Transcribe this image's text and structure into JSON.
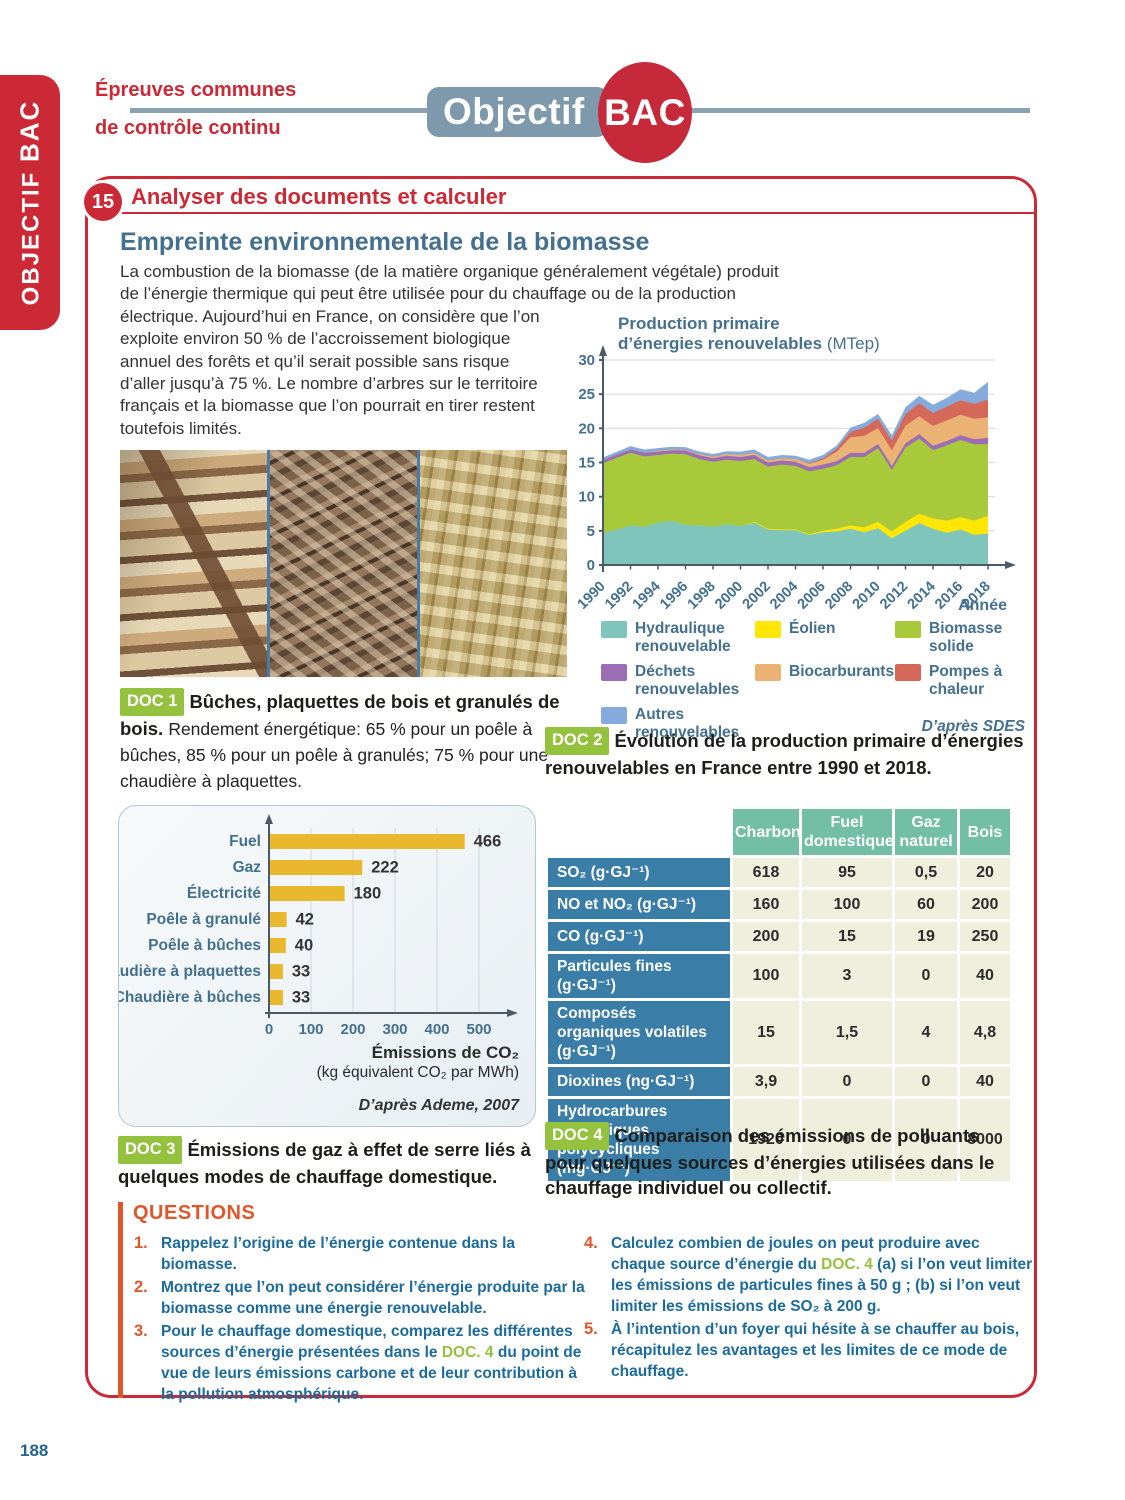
{
  "page": {
    "number": "188"
  },
  "header": {
    "sidebar_label_1": "OBJECTIF",
    "sidebar_label_2": "BAC",
    "eyebrow_line1": "Épreuves communes",
    "eyebrow_line2": "de contrôle continu",
    "logo_text": "Objectif",
    "logo_badge": "BAC"
  },
  "exercise": {
    "number": "15",
    "heading": "Analyser des documents et calculer",
    "title": "Empreinte environnementale de la biomasse",
    "intro": "La combustion de la biomasse (de la matière organique généralement végétale) produit de l’énergie thermique qui peut être utilisée pour du chauffage ou de la production électrique. Aujourd’hui en France, on considère que l’on exploite environ 50 % de l’accroissement biologique annuel des forêts et qu’il serait possible sans risque d’aller jusqu’à 75 %. Le nombre d’arbres sur le territoire français et la biomasse que l’on pourrait en tirer restent toutefois limités."
  },
  "doc1": {
    "badge": "DOC 1",
    "title": "Bûches, plaquettes de bois et granulés de bois.",
    "text": "Rendement énergétique: 65 % pour un poêle à bûches, 85 % pour un poêle à granulés; 75 % pour une chaudière à plaquettes."
  },
  "doc2": {
    "badge": "DOC 2",
    "caption": "Évolution de la production primaire d’énergies renouvelables en France entre 1990 et 2018.",
    "legend": [
      {
        "label": "Hydraulique renouvelable",
        "color": "#7fc5bb"
      },
      {
        "label": "Éolien",
        "color": "#ffe605"
      },
      {
        "label": "Biomasse solide",
        "color": "#a8c93a"
      },
      {
        "label": "Déchets renouvelables",
        "color": "#9b6db4"
      },
      {
        "label": "Biocarburants",
        "color": "#eab273"
      },
      {
        "label": "Pompes à chaleur",
        "color": "#d4695a"
      },
      {
        "label": "Autres renouvelables",
        "color": "#85abdc"
      },
      {
        "label": "",
        "color": null
      },
      {
        "label": "D’après SDES",
        "color": null,
        "source": true
      }
    ]
  },
  "doc3": {
    "badge": "DOC 3",
    "caption": "Émissions de gaz à effet de serre liés à quelques modes de chauffage domestique."
  },
  "doc4": {
    "badge": "DOC 4",
    "caption": "Comparaison des émissions de polluants pour quelques sources d’énergies utilisées dans le chauffage individuel ou collectif.",
    "table": {
      "columns": [
        "Charbon",
        "Fuel domestique",
        "Gaz naturel",
        "Bois"
      ],
      "rows": [
        {
          "label": "SO₂ (g·GJ⁻¹)",
          "values": [
            "618",
            "95",
            "0,5",
            "20"
          ]
        },
        {
          "label": "NO et NO₂ (g·GJ⁻¹)",
          "values": [
            "160",
            "100",
            "60",
            "200"
          ]
        },
        {
          "label": "CO  (g·GJ⁻¹)",
          "values": [
            "200",
            "15",
            "19",
            "250"
          ]
        },
        {
          "label": "Particules fines (g·GJ⁻¹)",
          "values": [
            "100",
            "3",
            "0",
            "40"
          ]
        },
        {
          "label": "Composés organiques volatiles (g·GJ⁻¹)",
          "values": [
            "15",
            "1,5",
            "4",
            "4,8"
          ]
        },
        {
          "label": "Dioxines (ng·GJ⁻¹)",
          "values": [
            "3,9",
            "0",
            "0",
            "40"
          ]
        },
        {
          "label": "Hydrocarbures aromatiques polycycliques (mg·GJ⁻¹)",
          "values": [
            "1920",
            "0",
            "0",
            "8000"
          ]
        }
      ]
    }
  },
  "questions": {
    "heading": "QUESTIONS",
    "col1": [
      {
        "num": "1.",
        "parts": [
          {
            "t": "Rappelez l’origine de l’énergie contenue dans la biomasse."
          }
        ]
      },
      {
        "num": "2.",
        "parts": [
          {
            "t": "Montrez que l’on peut considérer l’énergie produite par la biomasse comme une énergie renouvelable."
          }
        ]
      },
      {
        "num": "3.",
        "parts": [
          {
            "t": "Pour le chauffage domestique, comparez les différentes sources d’énergie présentées dans le "
          },
          {
            "t": "DOC. 4",
            "green": true
          },
          {
            "t": " du point de vue de leurs émissions carbone et de leur contribution à la pollution atmosphérique."
          }
        ]
      }
    ],
    "col2": [
      {
        "num": "4.",
        "parts": [
          {
            "t": "Calculez combien de joules on peut produire avec chaque source d’énergie du "
          },
          {
            "t": "DOC. 4",
            "green": true
          },
          {
            "t": " (a) si l’on veut limiter les émissions de particules fines à 50 g ;  (b) si l’on veut limiter les émissions de SO₂ à 200 g."
          }
        ]
      },
      {
        "num": "5.",
        "parts": [
          {
            "t": "À l’intention d’un foyer qui hésite à se chauffer au bois, récapitulez les avantages et les limites de ce mode de chauffage."
          }
        ]
      }
    ]
  },
  "chart_data": [
    {
      "type": "area",
      "stacked": true,
      "title_line1": "Production primaire",
      "title_line2": "d’énergies renouvelables",
      "unit": "(MTep)",
      "xlabel": "Année",
      "source": "D’après SDES",
      "ylim": [
        0,
        30
      ],
      "yticks": [
        0,
        5,
        10,
        15,
        20,
        25,
        30
      ],
      "x": [
        1990,
        1991,
        1992,
        1993,
        1994,
        1995,
        1996,
        1997,
        1998,
        1999,
        2000,
        2001,
        2002,
        2003,
        2004,
        2005,
        2006,
        2007,
        2008,
        2009,
        2010,
        2011,
        2012,
        2013,
        2014,
        2015,
        2016,
        2017,
        2018
      ],
      "x_tick_step": 2,
      "series": [
        {
          "name": "Hydraulique renouvelable",
          "color": "#7fc5bb",
          "values": [
            4.7,
            5.2,
            5.8,
            5.6,
            6.2,
            6.5,
            5.9,
            5.8,
            5.6,
            6.0,
            5.7,
            6.2,
            5.2,
            5.1,
            5.1,
            4.4,
            4.8,
            4.9,
            5.3,
            4.8,
            5.4,
            3.9,
            5.0,
            6.1,
            5.3,
            4.7,
            5.2,
            4.4,
            4.6
          ]
        },
        {
          "name": "Éolien",
          "color": "#ffe605",
          "values": [
            0,
            0,
            0,
            0,
            0,
            0,
            0,
            0,
            0,
            0,
            0,
            0.1,
            0.1,
            0.1,
            0.1,
            0.1,
            0.2,
            0.4,
            0.5,
            0.7,
            0.9,
            1.0,
            1.3,
            1.4,
            1.5,
            1.8,
            1.8,
            2.1,
            2.6
          ]
        },
        {
          "name": "Biomasse solide",
          "color": "#a8c93a",
          "values": [
            10.2,
            10.5,
            10.6,
            10.3,
            9.9,
            9.8,
            10.3,
            9.7,
            9.5,
            9.4,
            9.5,
            9.2,
            9.1,
            9.5,
            9.3,
            9.2,
            9.1,
            9.3,
            10.0,
            10.3,
            10.8,
            9.0,
            10.9,
            11.0,
            10.0,
            11.0,
            11.3,
            11.2,
            10.5
          ]
        },
        {
          "name": "Déchets renouvelables",
          "color": "#9b6db4",
          "values": [
            0.45,
            0.45,
            0.5,
            0.5,
            0.5,
            0.5,
            0.55,
            0.55,
            0.55,
            0.6,
            0.6,
            0.6,
            0.6,
            0.6,
            0.6,
            0.6,
            0.6,
            0.6,
            0.6,
            0.6,
            0.6,
            0.6,
            0.6,
            0.65,
            0.65,
            0.65,
            0.7,
            0.7,
            0.9
          ]
        },
        {
          "name": "Biocarburants",
          "color": "#eab273",
          "values": [
            0,
            0,
            0,
            0,
            0.1,
            0.1,
            0.1,
            0.15,
            0.2,
            0.25,
            0.3,
            0.3,
            0.3,
            0.3,
            0.4,
            0.5,
            0.7,
            1.4,
            2.3,
            2.5,
            2.3,
            2.3,
            2.6,
            2.6,
            2.9,
            3.0,
            3.0,
            3.0,
            3.0
          ]
        },
        {
          "name": "Pompes à chaleur",
          "color": "#d4695a",
          "values": [
            0,
            0,
            0,
            0,
            0,
            0,
            0,
            0,
            0,
            0,
            0,
            0,
            0,
            0,
            0,
            0.1,
            0.2,
            0.4,
            0.8,
            1.2,
            1.4,
            1.4,
            1.7,
            1.9,
            1.9,
            2.0,
            2.1,
            2.2,
            2.6
          ]
        },
        {
          "name": "Autres renouvelables",
          "color": "#85abdc",
          "values": [
            0.4,
            0.4,
            0.5,
            0.5,
            0.4,
            0.4,
            0.4,
            0.4,
            0.4,
            0.4,
            0.5,
            0.5,
            0.5,
            0.5,
            0.5,
            0.5,
            0.5,
            0.5,
            0.6,
            0.7,
            0.7,
            0.8,
            1.0,
            1.1,
            1.2,
            1.3,
            1.6,
            1.6,
            2.6
          ]
        }
      ]
    },
    {
      "type": "bar",
      "orientation": "horizontal",
      "title": "Émissions de CO₂",
      "subtitle": "(kg équivalent CO₂ par MWh)",
      "source": "D’après Ademe, 2007",
      "categories": [
        "Fuel",
        "Gaz",
        "Électricité",
        "Poêle à granulé",
        "Poêle à bûches",
        "Chaudière à plaquettes",
        "Chaudière à bûches"
      ],
      "values": [
        466,
        222,
        180,
        42,
        40,
        33,
        33
      ],
      "xlim": [
        0,
        550
      ],
      "xticks": [
        0,
        100,
        200,
        300,
        400,
        500
      ],
      "bar_color": "#eab82e"
    }
  ]
}
